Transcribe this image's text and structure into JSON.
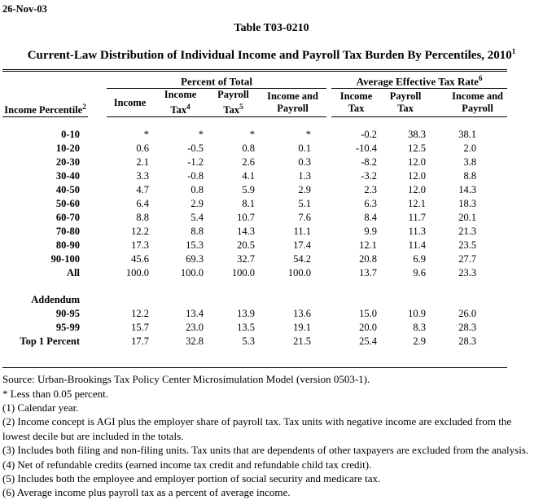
{
  "header": {
    "date": "26-Nov-03",
    "table_number": "Table T03-0210",
    "title": "Current-Law Distribution of Individual Income and Payroll Tax Burden By Percentiles, 2010",
    "title_sup": "1"
  },
  "table": {
    "row_header": {
      "label": "Income Percentile",
      "sup": "2"
    },
    "groups": [
      {
        "label": "Percent of Total",
        "sup": ""
      },
      {
        "label": "Average Effective Tax Rate",
        "sup": "6"
      }
    ],
    "columns": [
      {
        "lines": [
          "Income"
        ],
        "sup": ""
      },
      {
        "lines": [
          "Income",
          "Tax"
        ],
        "sup": "4"
      },
      {
        "lines": [
          "Payroll",
          "Tax"
        ],
        "sup": "5"
      },
      {
        "lines": [
          "Income and",
          "Payroll"
        ],
        "sup": ""
      },
      {
        "lines": [
          "Income",
          "Tax"
        ],
        "sup": ""
      },
      {
        "lines": [
          "Payroll",
          "Tax"
        ],
        "sup": ""
      },
      {
        "lines": [
          "Income and",
          "Payroll"
        ],
        "sup": ""
      }
    ],
    "rows": [
      {
        "label": "0-10",
        "values": [
          "*",
          "*",
          "*",
          "*",
          "-0.2",
          "38.3",
          "38.1"
        ]
      },
      {
        "label": "10-20",
        "values": [
          "0.6",
          "-0.5",
          "0.8",
          "0.1",
          "-10.4",
          "12.5",
          "2.0"
        ]
      },
      {
        "label": "20-30",
        "values": [
          "2.1",
          "-1.2",
          "2.6",
          "0.3",
          "-8.2",
          "12.0",
          "3.8"
        ]
      },
      {
        "label": "30-40",
        "values": [
          "3.3",
          "-0.8",
          "4.1",
          "1.3",
          "-3.2",
          "12.0",
          "8.8"
        ]
      },
      {
        "label": "40-50",
        "values": [
          "4.7",
          "0.8",
          "5.9",
          "2.9",
          "2.3",
          "12.0",
          "14.3"
        ]
      },
      {
        "label": "50-60",
        "values": [
          "6.4",
          "2.9",
          "8.1",
          "5.1",
          "6.3",
          "12.1",
          "18.3"
        ]
      },
      {
        "label": "60-70",
        "values": [
          "8.8",
          "5.4",
          "10.7",
          "7.6",
          "8.4",
          "11.7",
          "20.1"
        ]
      },
      {
        "label": "70-80",
        "values": [
          "12.2",
          "8.8",
          "14.3",
          "11.1",
          "9.9",
          "11.3",
          "21.3"
        ]
      },
      {
        "label": "80-90",
        "values": [
          "17.3",
          "15.3",
          "20.5",
          "17.4",
          "12.1",
          "11.4",
          "23.5"
        ]
      },
      {
        "label": "90-100",
        "values": [
          "45.6",
          "69.3",
          "32.7",
          "54.2",
          "20.8",
          "6.9",
          "27.7"
        ]
      },
      {
        "label": "All",
        "values": [
          "100.0",
          "100.0",
          "100.0",
          "100.0",
          "13.7",
          "9.6",
          "23.3"
        ]
      }
    ],
    "addendum_label": "Addendum",
    "addendum_rows": [
      {
        "label": "90-95",
        "values": [
          "12.2",
          "13.4",
          "13.9",
          "13.6",
          "15.0",
          "10.9",
          "26.0"
        ]
      },
      {
        "label": "95-99",
        "values": [
          "15.7",
          "23.0",
          "13.5",
          "19.1",
          "20.0",
          "8.3",
          "28.3"
        ]
      },
      {
        "label": "Top 1 Percent",
        "values": [
          "17.7",
          "32.8",
          "5.3",
          "21.5",
          "25.4",
          "2.9",
          "28.3"
        ]
      }
    ]
  },
  "footnotes": [
    "Source: Urban-Brookings Tax Policy Center Microsimulation Model (version 0503-1).",
    "* Less than 0.05 percent.",
    "(1) Calendar year.",
    "(2) Income concept is AGI plus the employer share of payroll tax.  Tax units with negative income are excluded from the lowest decile but are included in the totals.",
    "(3) Includes both filing and non-filing units.  Tax units that are dependents of other taxpayers are excluded from the analysis.",
    "(4) Net of refundable credits (earned income tax credit and refundable child tax credit).",
    "(5) Includes both the employee and employer portion of social security and medicare tax.",
    "(6) Average income plus payroll tax as a percent of average income."
  ]
}
